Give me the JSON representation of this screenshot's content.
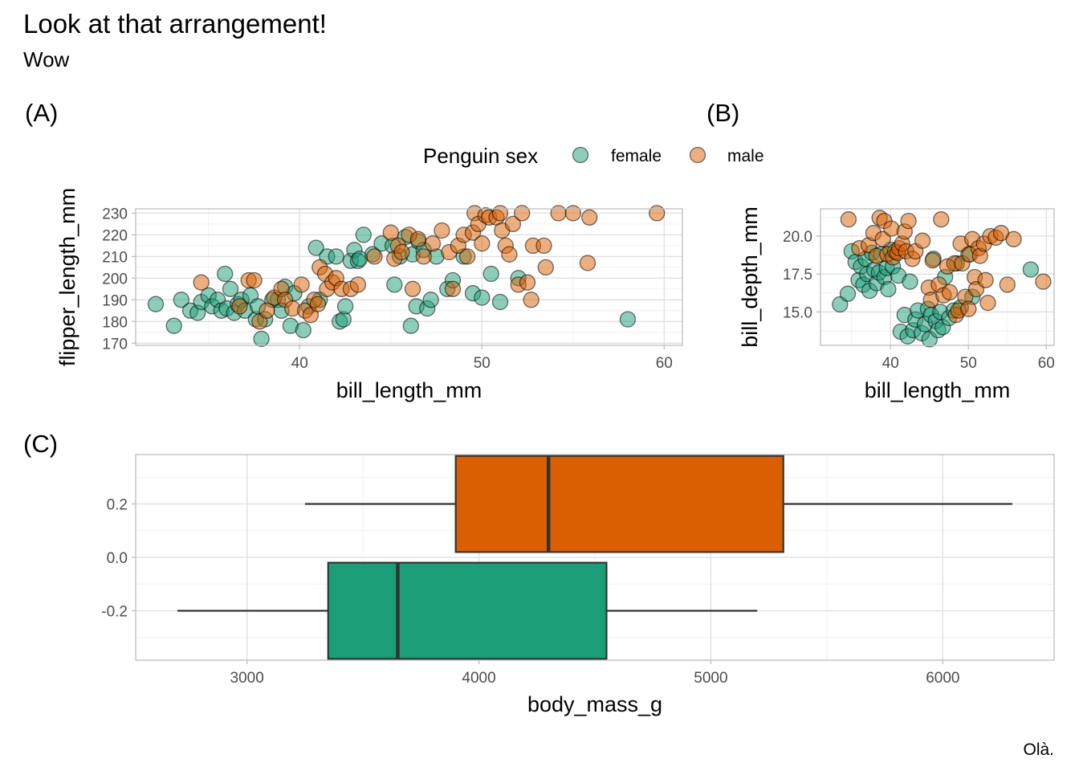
{
  "figure": {
    "title": "Look at that arrangement!",
    "subtitle": "Wow",
    "caption": "Olà."
  },
  "legend": {
    "title": "Penguin sex",
    "items": [
      {
        "label": "female",
        "color": "#1b9e77"
      },
      {
        "label": "male",
        "color": "#d95f02"
      }
    ]
  },
  "colors": {
    "female": "#1b9e77",
    "male": "#d95f02"
  },
  "chart_data": [
    {
      "tag": "(A)",
      "type": "scatter",
      "xlabel": "bill_length_mm",
      "ylabel": "flipper_length_mm",
      "xlim": [
        31,
        61
      ],
      "ylim": [
        169,
        232
      ],
      "xticks": [
        40,
        50,
        60
      ],
      "yticks": [
        170,
        180,
        190,
        200,
        210,
        220,
        230
      ],
      "grid": true,
      "series": [
        {
          "name": "female",
          "points": [
            [
              32.1,
              188
            ],
            [
              33.1,
              178
            ],
            [
              33.5,
              190
            ],
            [
              34.0,
              185
            ],
            [
              34.4,
              184
            ],
            [
              34.6,
              189
            ],
            [
              35.0,
              192
            ],
            [
              35.2,
              187
            ],
            [
              35.5,
              190
            ],
            [
              35.7,
              185
            ],
            [
              35.9,
              202
            ],
            [
              36.0,
              186
            ],
            [
              36.2,
              195
            ],
            [
              36.4,
              184
            ],
            [
              36.6,
              188
            ],
            [
              36.8,
              190
            ],
            [
              37.0,
              185
            ],
            [
              37.3,
              192
            ],
            [
              37.6,
              181
            ],
            [
              37.7,
              187
            ],
            [
              37.9,
              172
            ],
            [
              38.1,
              181
            ],
            [
              38.5,
              190
            ],
            [
              38.8,
              190
            ],
            [
              39.0,
              185
            ],
            [
              39.2,
              196
            ],
            [
              39.5,
              178
            ],
            [
              39.7,
              193
            ],
            [
              40.2,
              176
            ],
            [
              40.5,
              187
            ],
            [
              40.9,
              214
            ],
            [
              41.1,
              190
            ],
            [
              41.5,
              210
            ],
            [
              42.0,
              210
            ],
            [
              42.2,
              180
            ],
            [
              42.4,
              181
            ],
            [
              42.5,
              187
            ],
            [
              42.8,
              208
            ],
            [
              43.0,
              213
            ],
            [
              43.2,
              208
            ],
            [
              43.3,
              209
            ],
            [
              43.5,
              220
            ],
            [
              44.0,
              211
            ],
            [
              44.5,
              216
            ],
            [
              45.1,
              215
            ],
            [
              45.2,
              197
            ],
            [
              45.5,
              210
            ],
            [
              45.8,
              219
            ],
            [
              46.1,
              178
            ],
            [
              46.2,
              211
            ],
            [
              46.4,
              187
            ],
            [
              46.5,
              217
            ],
            [
              46.8,
              213
            ],
            [
              47.0,
              186
            ],
            [
              47.2,
              190
            ],
            [
              47.5,
              210
            ],
            [
              48.1,
              195
            ],
            [
              48.4,
              199
            ],
            [
              49.0,
              210
            ],
            [
              49.5,
              193
            ],
            [
              50.0,
              191
            ],
            [
              50.5,
              202
            ],
            [
              51.0,
              189
            ],
            [
              52.0,
              200
            ],
            [
              58.0,
              181
            ]
          ]
        },
        {
          "name": "male",
          "points": [
            [
              34.6,
              198
            ],
            [
              36.7,
              187
            ],
            [
              37.2,
              199
            ],
            [
              37.5,
              199
            ],
            [
              37.8,
              180
            ],
            [
              38.2,
              185
            ],
            [
              38.6,
              191
            ],
            [
              39.0,
              195
            ],
            [
              39.2,
              190
            ],
            [
              39.6,
              186
            ],
            [
              40.1,
              197
            ],
            [
              40.3,
              185
            ],
            [
              40.6,
              183
            ],
            [
              40.8,
              190
            ],
            [
              41.0,
              188
            ],
            [
              41.1,
              205
            ],
            [
              41.4,
              202
            ],
            [
              41.5,
              195
            ],
            [
              41.8,
              198
            ],
            [
              42.0,
              200
            ],
            [
              42.3,
              195
            ],
            [
              42.8,
              195
            ],
            [
              43.2,
              197
            ],
            [
              44.1,
              210
            ],
            [
              45.0,
              221
            ],
            [
              45.2,
              209
            ],
            [
              45.4,
              215
            ],
            [
              45.6,
              212
            ],
            [
              46.0,
              220
            ],
            [
              46.2,
              195
            ],
            [
              46.5,
              218
            ],
            [
              46.8,
              210
            ],
            [
              47.3,
              216
            ],
            [
              47.8,
              222
            ],
            [
              48.2,
              212
            ],
            [
              48.4,
              195
            ],
            [
              48.7,
              215
            ],
            [
              49.0,
              220
            ],
            [
              49.2,
              210
            ],
            [
              49.5,
              221
            ],
            [
              49.6,
              230
            ],
            [
              49.8,
              225
            ],
            [
              50.0,
              216
            ],
            [
              50.2,
              229
            ],
            [
              50.4,
              228
            ],
            [
              50.8,
              228
            ],
            [
              51.0,
              230
            ],
            [
              51.1,
              222
            ],
            [
              51.3,
              215
            ],
            [
              51.5,
              211
            ],
            [
              51.7,
              225
            ],
            [
              52.0,
              197
            ],
            [
              52.2,
              230
            ],
            [
              52.5,
              198
            ],
            [
              52.7,
              190
            ],
            [
              52.8,
              215
            ],
            [
              53.4,
              215
            ],
            [
              53.5,
              205
            ],
            [
              54.2,
              230
            ],
            [
              55.0,
              230
            ],
            [
              55.8,
              207
            ],
            [
              55.9,
              228
            ],
            [
              59.6,
              230
            ]
          ]
        }
      ]
    },
    {
      "tag": "(B)",
      "type": "scatter",
      "xlabel": "bill_length_mm",
      "ylabel": "bill_depth_mm",
      "xlim": [
        31,
        61
      ],
      "ylim": [
        12.8,
        21.8
      ],
      "xticks": [
        40,
        50,
        60
      ],
      "yticks": [
        15.0,
        17.5,
        20.0
      ],
      "ytick_labels": [
        "15.0",
        "17.5",
        "20.0"
      ],
      "grid": true,
      "series": [
        {
          "name": "female",
          "points": [
            [
              33.5,
              15.5
            ],
            [
              34.5,
              16.2
            ],
            [
              35.0,
              19.0
            ],
            [
              35.5,
              18.3
            ],
            [
              35.9,
              17.1
            ],
            [
              36.2,
              18.0
            ],
            [
              36.5,
              16.8
            ],
            [
              36.8,
              18.5
            ],
            [
              37.0,
              17.5
            ],
            [
              37.3,
              16.4
            ],
            [
              37.6,
              18.9
            ],
            [
              37.9,
              17.8
            ],
            [
              38.2,
              16.9
            ],
            [
              38.5,
              17.6
            ],
            [
              38.8,
              18.8
            ],
            [
              39.2,
              17.3
            ],
            [
              39.5,
              17.9
            ],
            [
              39.7,
              16.5
            ],
            [
              40.0,
              19.1
            ],
            [
              40.3,
              18.0
            ],
            [
              41.0,
              17.4
            ],
            [
              41.3,
              13.7
            ],
            [
              41.8,
              14.8
            ],
            [
              42.2,
              13.4
            ],
            [
              42.5,
              17.0
            ],
            [
              42.9,
              13.8
            ],
            [
              43.2,
              14.5
            ],
            [
              43.5,
              15.1
            ],
            [
              44.0,
              13.6
            ],
            [
              44.4,
              14.2
            ],
            [
              44.8,
              15.2
            ],
            [
              45.0,
              13.2
            ],
            [
              45.2,
              14.8
            ],
            [
              45.5,
              18.5
            ],
            [
              45.8,
              14.4
            ],
            [
              46.1,
              13.8
            ],
            [
              46.4,
              15.0
            ],
            [
              46.7,
              14.0
            ],
            [
              47.0,
              17.3
            ],
            [
              47.5,
              14.6
            ],
            [
              48.1,
              15.1
            ],
            [
              48.5,
              18.2
            ],
            [
              49.0,
              15.3
            ],
            [
              50.0,
              18.8
            ],
            [
              50.5,
              16.0
            ],
            [
              58.0,
              17.8
            ]
          ]
        },
        {
          "name": "male",
          "points": [
            [
              34.6,
              21.1
            ],
            [
              36.0,
              19.2
            ],
            [
              37.2,
              19.4
            ],
            [
              37.8,
              20.2
            ],
            [
              38.2,
              18.7
            ],
            [
              38.6,
              21.2
            ],
            [
              39.0,
              19.8
            ],
            [
              39.2,
              21.0
            ],
            [
              39.6,
              18.8
            ],
            [
              40.1,
              20.5
            ],
            [
              40.3,
              18.6
            ],
            [
              40.6,
              19.0
            ],
            [
              40.9,
              18.9
            ],
            [
              41.1,
              19.2
            ],
            [
              41.5,
              19.5
            ],
            [
              41.8,
              20.3
            ],
            [
              42.0,
              19.0
            ],
            [
              42.3,
              21.0
            ],
            [
              42.8,
              18.5
            ],
            [
              43.2,
              19.0
            ],
            [
              44.1,
              19.7
            ],
            [
              44.9,
              16.6
            ],
            [
              45.2,
              15.8
            ],
            [
              45.4,
              18.4
            ],
            [
              46.2,
              16.8
            ],
            [
              46.5,
              21.1
            ],
            [
              46.8,
              16.1
            ],
            [
              47.3,
              18.0
            ],
            [
              47.6,
              16.3
            ],
            [
              48.2,
              18.2
            ],
            [
              48.4,
              14.8
            ],
            [
              48.7,
              15.1
            ],
            [
              49.0,
              19.5
            ],
            [
              49.2,
              18.2
            ],
            [
              49.6,
              16.0
            ],
            [
              50.0,
              15.2
            ],
            [
              50.2,
              18.8
            ],
            [
              50.5,
              19.8
            ],
            [
              50.8,
              17.3
            ],
            [
              51.0,
              16.5
            ],
            [
              51.3,
              19.2
            ],
            [
              51.5,
              18.7
            ],
            [
              52.0,
              19.5
            ],
            [
              52.2,
              17.1
            ],
            [
              52.5,
              15.6
            ],
            [
              52.8,
              20.0
            ],
            [
              53.5,
              19.9
            ],
            [
              54.2,
              20.2
            ],
            [
              55.0,
              16.8
            ],
            [
              55.8,
              19.8
            ],
            [
              59.6,
              17.0
            ]
          ]
        }
      ]
    },
    {
      "tag": "(C)",
      "type": "box",
      "xlabel": "body_mass_g",
      "ylabel": "",
      "xlim": [
        2520,
        6480
      ],
      "ylim": [
        -0.385,
        0.385
      ],
      "xticks": [
        3000,
        4000,
        5000,
        6000
      ],
      "yticks": [
        -0.2,
        0.0,
        0.2
      ],
      "ytick_labels": [
        "-0.2",
        "0.0",
        "0.2"
      ],
      "grid": true,
      "boxes": [
        {
          "name": "male",
          "y": 0.2,
          "min": 3250,
          "q1": 3900,
          "median": 4300,
          "q3": 5312.5,
          "max": 6300
        },
        {
          "name": "female",
          "y": -0.2,
          "min": 2700,
          "q1": 3350,
          "median": 3650,
          "q3": 4550,
          "max": 5200
        }
      ]
    }
  ]
}
